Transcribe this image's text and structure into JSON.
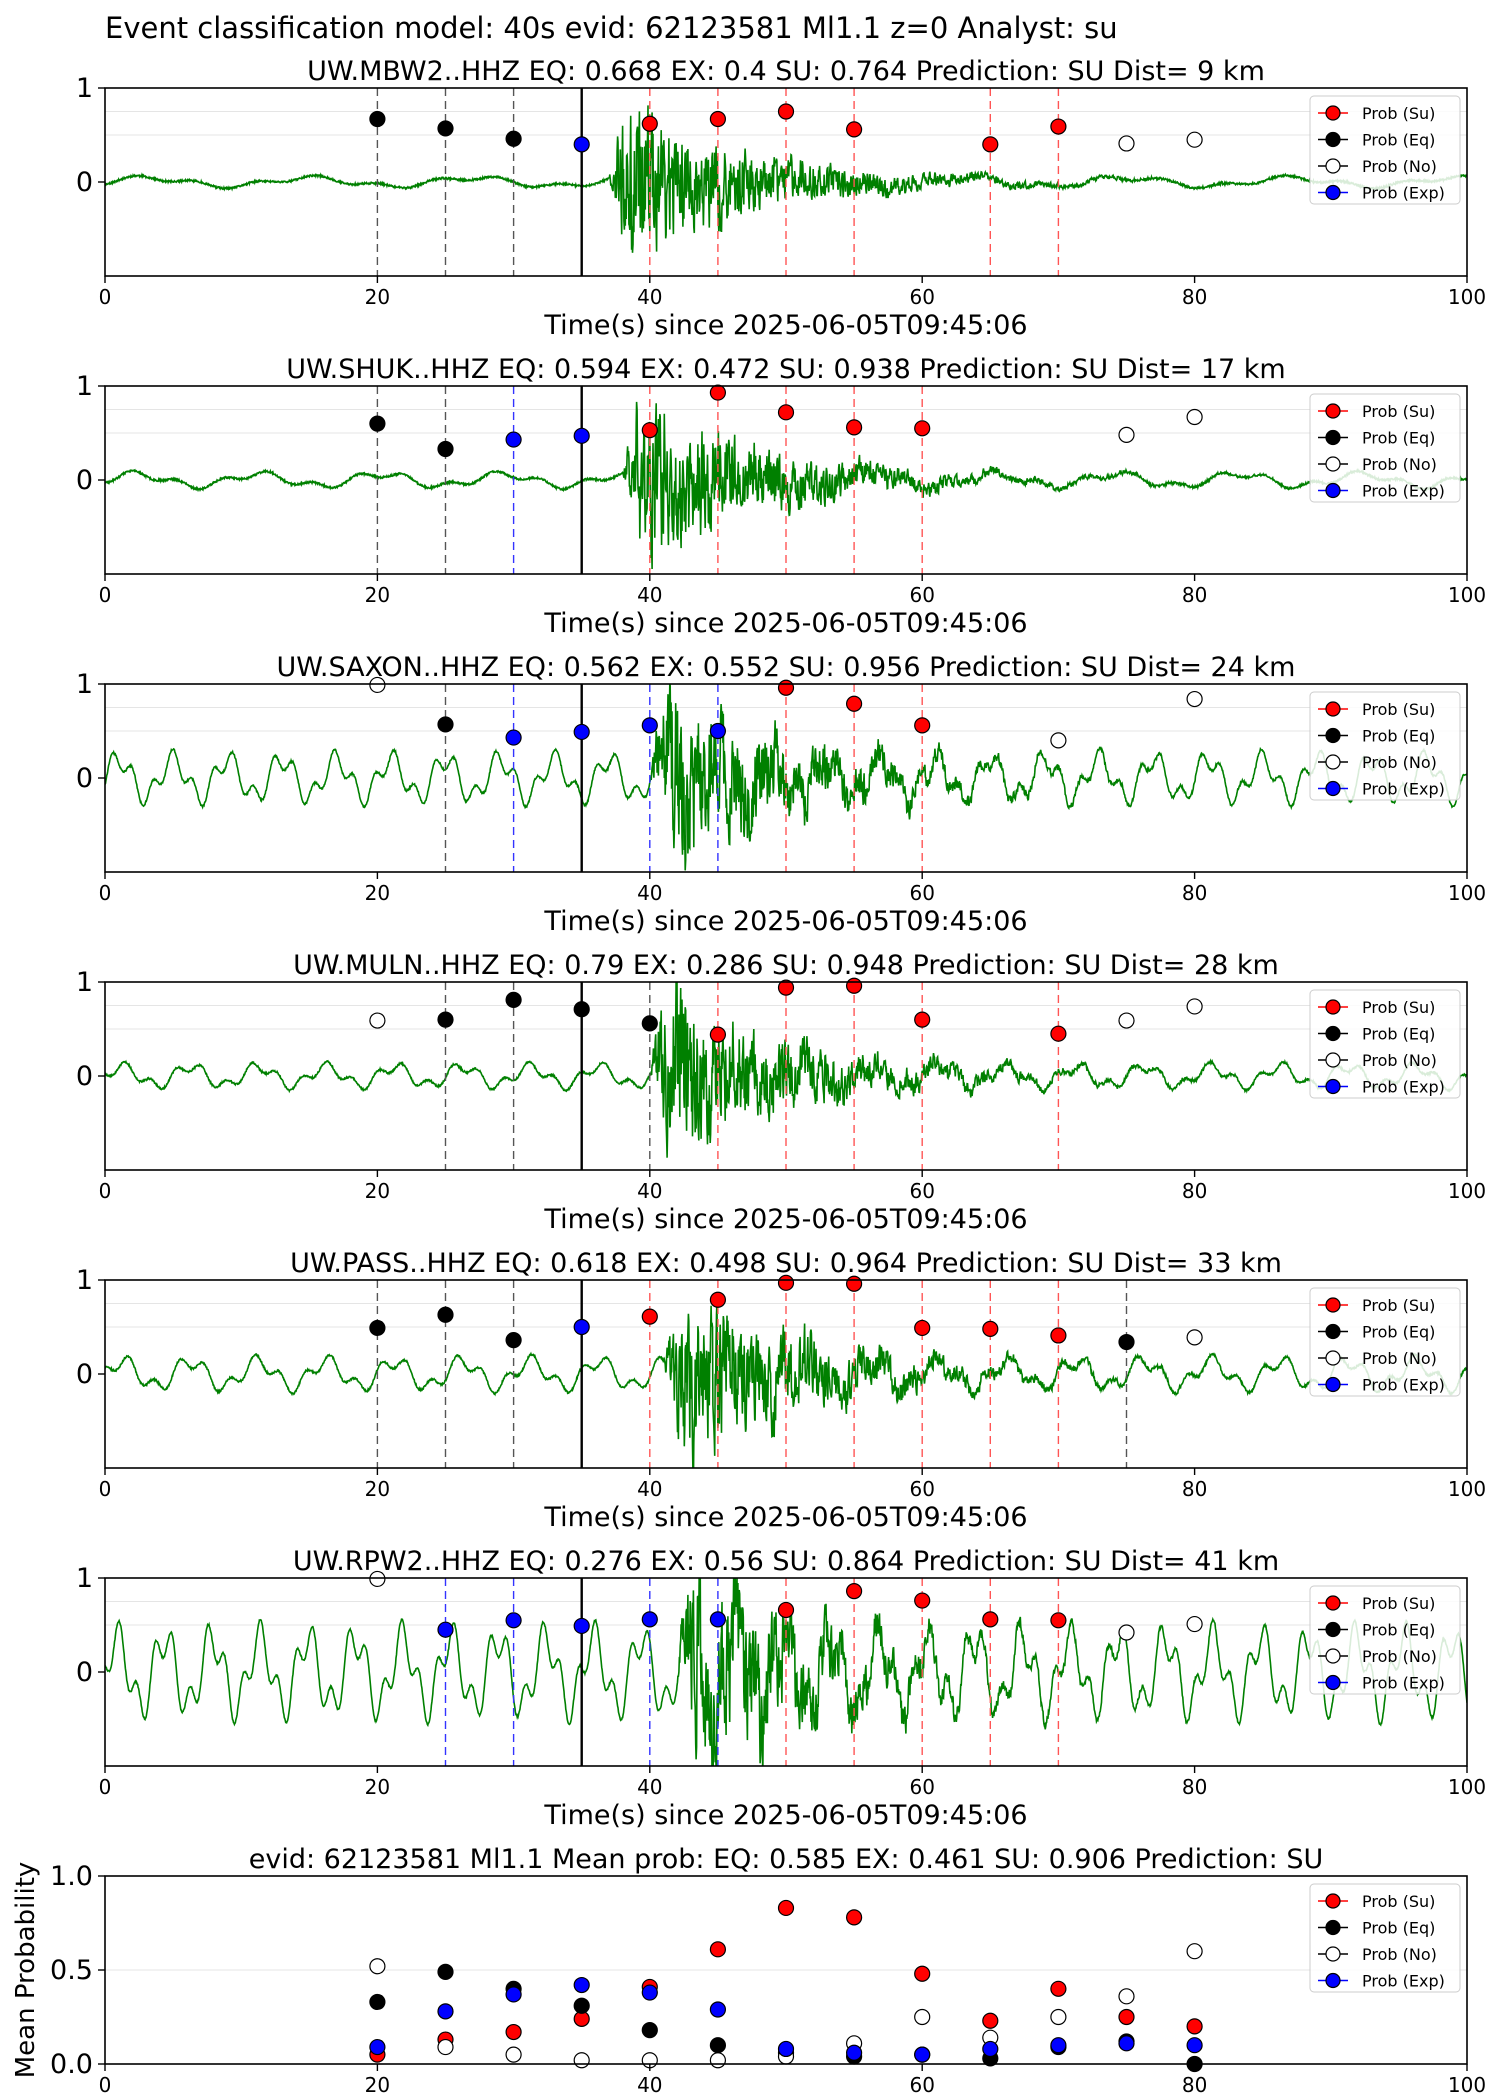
{
  "suptitle": "Event classification model: 40s evid: 62123581 Ml1.1 z=0 Analyst: su",
  "legend_labels": [
    "Prob (Su)",
    "Prob (Eq)",
    "Prob (No)",
    "Prob (Exp)"
  ],
  "colors": {
    "su": "#ff0000",
    "eq": "#000000",
    "no": "#ffffff",
    "exp": "#0000ff",
    "waveform": "#008000",
    "pick": "#000000"
  },
  "xlabel": "Time(s) since 2025-06-05T09:45:06",
  "chart_data": [
    {
      "type": "scatter",
      "title": "UW.MBW2..HHZ   EQ: 0.668  EX: 0.4  SU: 0.764   Prediction: SU    Dist= 9 km",
      "xlim": [
        0,
        100
      ],
      "ylim": [
        -1,
        1
      ],
      "x_ticks": [
        0,
        20,
        40,
        60,
        80,
        100
      ],
      "y_ticks": [
        0,
        1
      ],
      "pick_time": 35,
      "waveform": {
        "onset": 37,
        "peak": 0.95,
        "noise": 0.05,
        "seed": 11,
        "period": 12
      },
      "points": [
        {
          "x": 20,
          "y": 0.67,
          "class": "eq"
        },
        {
          "x": 25,
          "y": 0.57,
          "class": "eq"
        },
        {
          "x": 30,
          "y": 0.46,
          "class": "eq"
        },
        {
          "x": 35,
          "y": 0.4,
          "class": "exp"
        },
        {
          "x": 40,
          "y": 0.62,
          "class": "su"
        },
        {
          "x": 45,
          "y": 0.67,
          "class": "su"
        },
        {
          "x": 50,
          "y": 0.75,
          "class": "su"
        },
        {
          "x": 55,
          "y": 0.56,
          "class": "su"
        },
        {
          "x": 65,
          "y": 0.4,
          "class": "su"
        },
        {
          "x": 70,
          "y": 0.59,
          "class": "su"
        },
        {
          "x": 75,
          "y": 0.41,
          "class": "no"
        },
        {
          "x": 80,
          "y": 0.45,
          "class": "no"
        }
      ]
    },
    {
      "type": "scatter",
      "title": "UW.SHUK..HHZ   EQ: 0.594  EX: 0.472  SU: 0.938   Prediction: SU    Dist= 17 km",
      "xlim": [
        0,
        100
      ],
      "ylim": [
        -1,
        1
      ],
      "x_ticks": [
        0,
        20,
        40,
        60,
        80,
        100
      ],
      "y_ticks": [
        0,
        1
      ],
      "pick_time": 35,
      "waveform": {
        "onset": 38,
        "peak": 1.0,
        "noise": 0.07,
        "seed": 23,
        "period": 9
      },
      "points": [
        {
          "x": 20,
          "y": 0.6,
          "class": "eq"
        },
        {
          "x": 25,
          "y": 0.33,
          "class": "eq"
        },
        {
          "x": 30,
          "y": 0.43,
          "class": "exp"
        },
        {
          "x": 35,
          "y": 0.47,
          "class": "exp"
        },
        {
          "x": 40,
          "y": 0.53,
          "class": "su"
        },
        {
          "x": 45,
          "y": 0.93,
          "class": "su"
        },
        {
          "x": 50,
          "y": 0.72,
          "class": "su"
        },
        {
          "x": 55,
          "y": 0.56,
          "class": "su"
        },
        {
          "x": 60,
          "y": 0.55,
          "class": "su"
        },
        {
          "x": 75,
          "y": 0.48,
          "class": "no"
        },
        {
          "x": 80,
          "y": 0.67,
          "class": "no"
        }
      ]
    },
    {
      "type": "scatter",
      "title": "UW.SAXON..HHZ   EQ: 0.562  EX: 0.552  SU: 0.956   Prediction: SU    Dist= 24 km",
      "xlim": [
        0,
        100
      ],
      "ylim": [
        -1,
        1
      ],
      "x_ticks": [
        0,
        20,
        40,
        60,
        80,
        100
      ],
      "y_ticks": [
        0,
        1
      ],
      "pick_time": 35,
      "waveform": {
        "onset": 40,
        "peak": 1.0,
        "noise": 0.22,
        "seed": 37,
        "period": 4
      },
      "points": [
        {
          "x": 20,
          "y": 0.99,
          "class": "no"
        },
        {
          "x": 25,
          "y": 0.57,
          "class": "eq"
        },
        {
          "x": 30,
          "y": 0.43,
          "class": "exp"
        },
        {
          "x": 35,
          "y": 0.49,
          "class": "exp"
        },
        {
          "x": 40,
          "y": 0.56,
          "class": "exp"
        },
        {
          "x": 45,
          "y": 0.5,
          "class": "exp"
        },
        {
          "x": 50,
          "y": 0.96,
          "class": "su"
        },
        {
          "x": 55,
          "y": 0.79,
          "class": "su"
        },
        {
          "x": 60,
          "y": 0.56,
          "class": "su"
        },
        {
          "x": 70,
          "y": 0.4,
          "class": "no"
        },
        {
          "x": 80,
          "y": 0.84,
          "class": "no"
        }
      ]
    },
    {
      "type": "scatter",
      "title": "UW.MULN..HHZ   EQ: 0.79  EX: 0.286  SU: 0.948   Prediction: SU    Dist= 28 km",
      "xlim": [
        0,
        100
      ],
      "ylim": [
        -1,
        1
      ],
      "x_ticks": [
        0,
        20,
        40,
        60,
        80,
        100
      ],
      "y_ticks": [
        0,
        1
      ],
      "pick_time": 35,
      "waveform": {
        "onset": 40,
        "peak": 1.0,
        "noise": 0.11,
        "seed": 53,
        "period": 5
      },
      "points": [
        {
          "x": 20,
          "y": 0.59,
          "class": "no"
        },
        {
          "x": 25,
          "y": 0.6,
          "class": "eq"
        },
        {
          "x": 30,
          "y": 0.81,
          "class": "eq"
        },
        {
          "x": 35,
          "y": 0.71,
          "class": "eq"
        },
        {
          "x": 40,
          "y": 0.56,
          "class": "eq"
        },
        {
          "x": 45,
          "y": 0.44,
          "class": "su"
        },
        {
          "x": 50,
          "y": 0.94,
          "class": "su"
        },
        {
          "x": 55,
          "y": 0.96,
          "class": "su"
        },
        {
          "x": 60,
          "y": 0.6,
          "class": "su"
        },
        {
          "x": 70,
          "y": 0.45,
          "class": "su"
        },
        {
          "x": 75,
          "y": 0.59,
          "class": "no"
        },
        {
          "x": 80,
          "y": 0.74,
          "class": "no"
        }
      ]
    },
    {
      "type": "scatter",
      "title": "UW.PASS..HHZ   EQ: 0.618  EX: 0.498  SU: 0.964   Prediction: SU    Dist= 33 km",
      "xlim": [
        0,
        100
      ],
      "ylim": [
        -1,
        1
      ],
      "x_ticks": [
        0,
        20,
        40,
        60,
        80,
        100
      ],
      "y_ticks": [
        0,
        1
      ],
      "pick_time": 35,
      "waveform": {
        "onset": 41,
        "peak": 1.0,
        "noise": 0.15,
        "seed": 71,
        "period": 5
      },
      "points": [
        {
          "x": 20,
          "y": 0.49,
          "class": "eq"
        },
        {
          "x": 25,
          "y": 0.63,
          "class": "eq"
        },
        {
          "x": 30,
          "y": 0.36,
          "class": "eq"
        },
        {
          "x": 35,
          "y": 0.5,
          "class": "exp"
        },
        {
          "x": 40,
          "y": 0.61,
          "class": "su"
        },
        {
          "x": 45,
          "y": 0.79,
          "class": "su"
        },
        {
          "x": 50,
          "y": 0.97,
          "class": "su"
        },
        {
          "x": 55,
          "y": 0.96,
          "class": "su"
        },
        {
          "x": 60,
          "y": 0.49,
          "class": "su"
        },
        {
          "x": 65,
          "y": 0.48,
          "class": "su"
        },
        {
          "x": 70,
          "y": 0.41,
          "class": "su"
        },
        {
          "x": 75,
          "y": 0.34,
          "class": "eq"
        },
        {
          "x": 80,
          "y": 0.39,
          "class": "no"
        }
      ]
    },
    {
      "type": "scatter",
      "title": "UW.RPW2..HHZ   EQ: 0.276  EX: 0.56  SU: 0.864   Prediction: SU    Dist= 41 km",
      "xlim": [
        0,
        100
      ],
      "ylim": [
        -1,
        1
      ],
      "x_ticks": [
        0,
        20,
        40,
        60,
        80,
        100
      ],
      "y_ticks": [
        0,
        1
      ],
      "pick_time": 35,
      "waveform": {
        "onset": 42,
        "peak": 1.0,
        "noise": 0.4,
        "seed": 97,
        "period": 3.5
      },
      "points": [
        {
          "x": 20,
          "y": 0.99,
          "class": "no"
        },
        {
          "x": 25,
          "y": 0.45,
          "class": "exp"
        },
        {
          "x": 30,
          "y": 0.55,
          "class": "exp"
        },
        {
          "x": 35,
          "y": 0.49,
          "class": "exp"
        },
        {
          "x": 40,
          "y": 0.56,
          "class": "exp"
        },
        {
          "x": 45,
          "y": 0.56,
          "class": "exp"
        },
        {
          "x": 50,
          "y": 0.66,
          "class": "su"
        },
        {
          "x": 55,
          "y": 0.86,
          "class": "su"
        },
        {
          "x": 60,
          "y": 0.76,
          "class": "su"
        },
        {
          "x": 65,
          "y": 0.56,
          "class": "su"
        },
        {
          "x": 70,
          "y": 0.55,
          "class": "su"
        },
        {
          "x": 75,
          "y": 0.42,
          "class": "no"
        },
        {
          "x": 80,
          "y": 0.51,
          "class": "no"
        }
      ]
    },
    {
      "type": "scatter",
      "title": "evid: 62123581  Ml1.1   Mean prob:   EQ: 0.585  EX: 0.461  SU: 0.906   Prediction: SU",
      "ylabel": "Mean Probability",
      "xlim": [
        0,
        100
      ],
      "ylim": [
        0,
        1
      ],
      "x_ticks": [
        0,
        20,
        40,
        60,
        80,
        100
      ],
      "y_ticks": [
        0.0,
        0.5,
        1.0
      ],
      "y_tick_labels": [
        "0.0",
        "0.5",
        "1.0"
      ],
      "series": [
        {
          "name": "Prob (Su)",
          "class": "su",
          "x": [
            20,
            25,
            30,
            35,
            40,
            45,
            50,
            55,
            60,
            65,
            70,
            75,
            80
          ],
          "y": [
            0.05,
            0.13,
            0.17,
            0.24,
            0.41,
            0.61,
            0.83,
            0.78,
            0.48,
            0.23,
            0.4,
            0.25,
            0.2
          ]
        },
        {
          "name": "Prob (Eq)",
          "class": "eq",
          "x": [
            20,
            25,
            30,
            35,
            40,
            45,
            50,
            55,
            60,
            65,
            70,
            75,
            80
          ],
          "y": [
            0.33,
            0.49,
            0.4,
            0.31,
            0.18,
            0.1,
            0.06,
            0.04,
            0.05,
            0.03,
            0.09,
            0.12,
            0.0
          ]
        },
        {
          "name": "Prob (No)",
          "class": "no",
          "x": [
            20,
            25,
            30,
            35,
            40,
            45,
            50,
            55,
            60,
            65,
            70,
            75,
            80
          ],
          "y": [
            0.52,
            0.09,
            0.05,
            0.02,
            0.02,
            0.02,
            0.04,
            0.11,
            0.25,
            0.14,
            0.25,
            0.36,
            0.6
          ]
        },
        {
          "name": "Prob (Exp)",
          "class": "exp",
          "x": [
            20,
            25,
            30,
            35,
            40,
            45,
            50,
            55,
            60,
            65,
            70,
            75,
            80
          ],
          "y": [
            0.09,
            0.28,
            0.37,
            0.42,
            0.38,
            0.29,
            0.08,
            0.06,
            0.05,
            0.08,
            0.1,
            0.11,
            0.1
          ]
        }
      ]
    }
  ]
}
